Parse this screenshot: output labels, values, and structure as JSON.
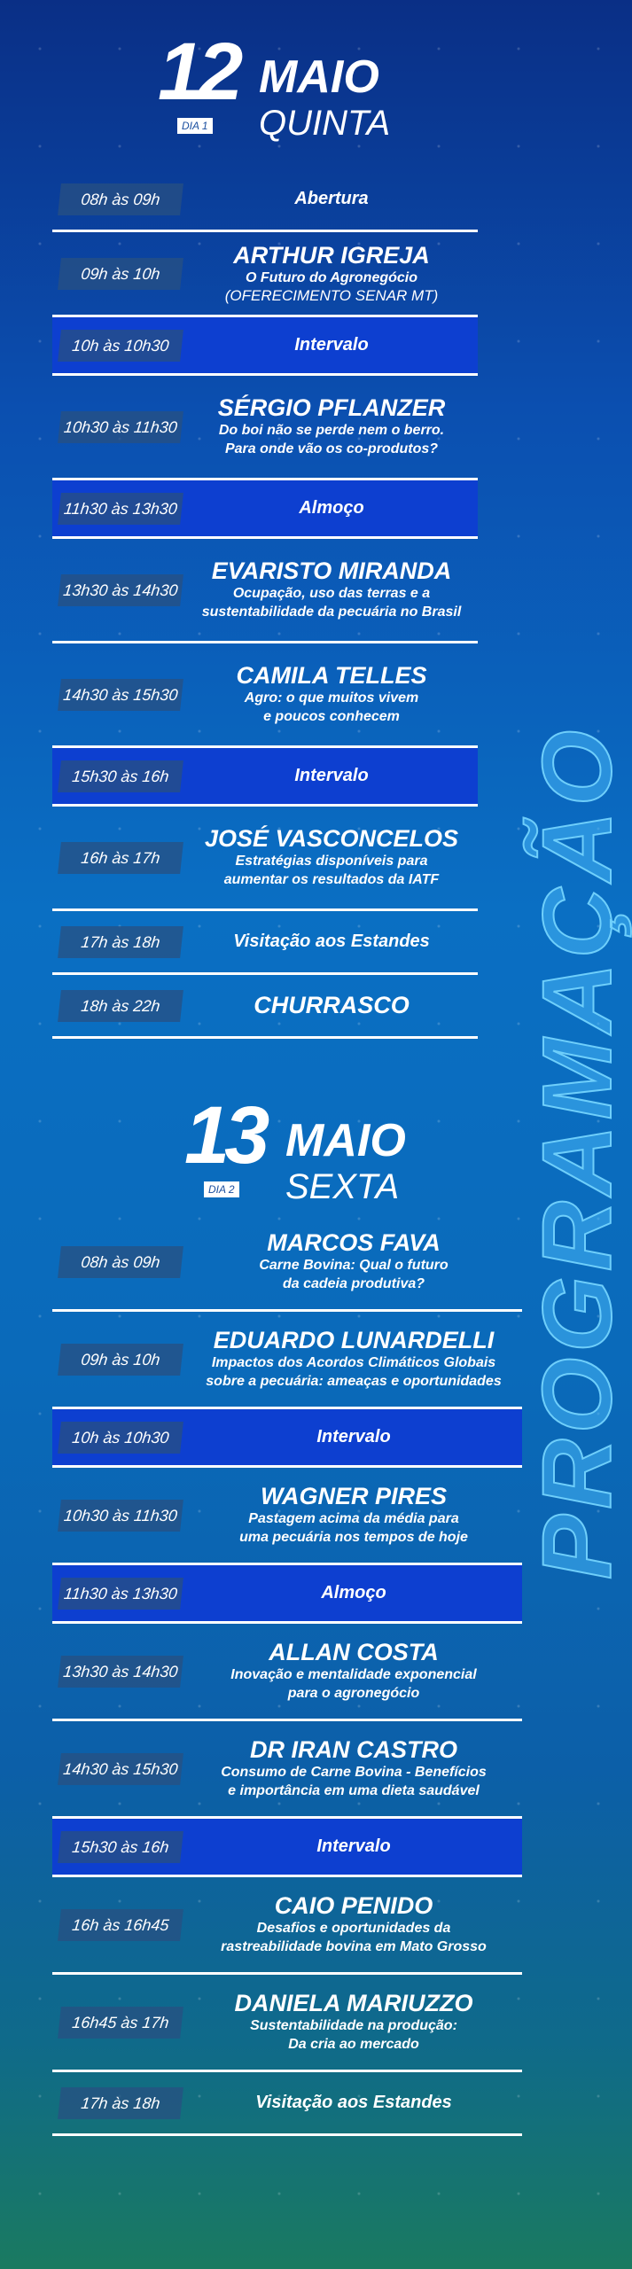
{
  "side_title": "PROGRAMAÇÃO",
  "days": [
    {
      "number": "12",
      "month": "MAIO",
      "weekday": "QUINTA",
      "badge": "DIA 1",
      "rows": [
        {
          "time": "08h às 09h",
          "title": "Abertura",
          "kind": "simple"
        },
        {
          "time": "09h às 10h",
          "name": "ARTHUR IGREJA",
          "sub": [
            "O Futuro do Agronegócio"
          ],
          "note": "(OFERECIMENTO SENAR MT)",
          "kind": "talk"
        },
        {
          "time": "10h às 10h30",
          "title": "Intervalo",
          "kind": "break"
        },
        {
          "time": "10h30 às 11h30",
          "name": "SÉRGIO PFLANZER",
          "sub": [
            "Do boi não se perde nem o berro.",
            "Para onde vão os co-produtos?"
          ],
          "kind": "talk"
        },
        {
          "time": "11h30 às 13h30",
          "title": "Almoço",
          "kind": "break"
        },
        {
          "time": "13h30 às 14h30",
          "name": "EVARISTO MIRANDA",
          "sub": [
            "Ocupação, uso das terras e a",
            "sustentabilidade da pecuária no Brasil"
          ],
          "kind": "talk"
        },
        {
          "time": "14h30 às 15h30",
          "name": "CAMILA TELLES",
          "sub": [
            "Agro: o que muitos vivem",
            "e poucos conhecem"
          ],
          "kind": "talk"
        },
        {
          "time": "15h30 às 16h",
          "title": "Intervalo",
          "kind": "break"
        },
        {
          "time": "16h às 17h",
          "name": "JOSÉ VASCONCELOS",
          "sub": [
            "Estratégias disponíveis para",
            "aumentar os resultados da IATF"
          ],
          "kind": "talk"
        },
        {
          "time": "17h às 18h",
          "title": "Visitação aos Estandes",
          "kind": "simple"
        },
        {
          "time": "18h às 22h",
          "name": "CHURRASCO",
          "sub": [],
          "kind": "simple-name"
        }
      ]
    },
    {
      "number": "13",
      "month": "MAIO",
      "weekday": "SEXTA",
      "badge": "DIA 2",
      "rows": [
        {
          "time": "08h às 09h",
          "name": "MARCOS FAVA",
          "sub": [
            "Carne Bovina: Qual o futuro",
            "da cadeia produtiva?"
          ],
          "kind": "talk"
        },
        {
          "time": "09h às 10h",
          "name": "EDUARDO LUNARDELLI",
          "sub": [
            "Impactos dos Acordos Climáticos Globais",
            "sobre a pecuária: ameaças e oportunidades"
          ],
          "kind": "talk"
        },
        {
          "time": "10h às 10h30",
          "title": "Intervalo",
          "kind": "break"
        },
        {
          "time": "10h30 às 11h30",
          "name": "WAGNER PIRES",
          "sub": [
            "Pastagem acima da média para",
            "uma pecuária nos tempos de hoje"
          ],
          "kind": "talk"
        },
        {
          "time": "11h30 às 13h30",
          "title": "Almoço",
          "kind": "break"
        },
        {
          "time": "13h30 às 14h30",
          "name": "ALLAN COSTA",
          "sub": [
            "Inovação e mentalidade exponencial",
            "para o agronegócio"
          ],
          "kind": "talk"
        },
        {
          "time": "14h30 às 15h30",
          "name": "DR IRAN CASTRO",
          "sub": [
            "Consumo de Carne Bovina - Benefícios",
            "e importância em uma dieta saudável"
          ],
          "kind": "talk"
        },
        {
          "time": "15h30 às 16h",
          "title": "Intervalo",
          "kind": "break"
        },
        {
          "time": "16h às 16h45",
          "name": "CAIO PENIDO",
          "sub": [
            "Desafios e oportunidades da",
            "rastreabilidade bovina em Mato Grosso"
          ],
          "kind": "talk"
        },
        {
          "time": "16h45 às 17h",
          "name": "DANIELA MARIUZZO",
          "sub": [
            "Sustentabilidade na produção:",
            "Da cria ao mercado"
          ],
          "kind": "talk"
        },
        {
          "time": "17h às 18h",
          "title": "Visitação aos Estandes",
          "kind": "simple"
        }
      ]
    }
  ]
}
